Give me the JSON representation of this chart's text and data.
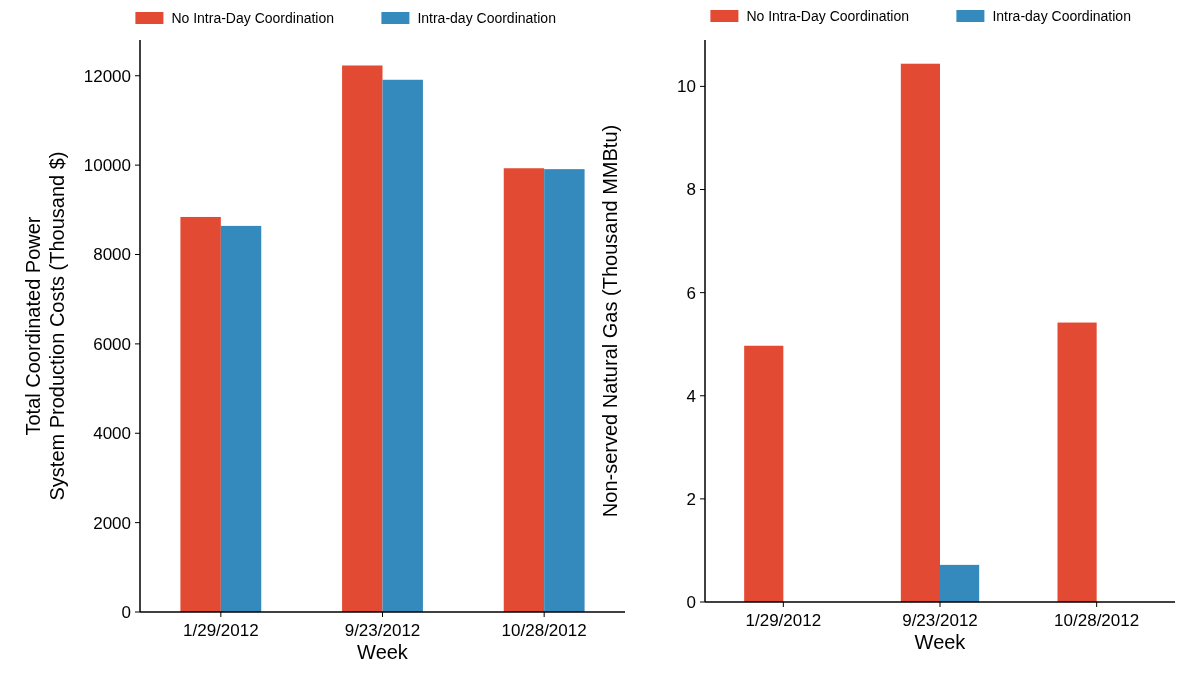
{
  "chart_data": [
    {
      "type": "bar",
      "xlabel": "Week",
      "ylabel": "Total Coordinated Power\nSystem Production Costs (Thousand $)",
      "categories": [
        "1/29/2012",
        "9/23/2012",
        "10/28/2012"
      ],
      "series": [
        {
          "name": "No Intra-Day Coordination",
          "color": "#e24a33",
          "values": [
            8840,
            12230,
            9930
          ]
        },
        {
          "name": "Intra-day Coordination",
          "color": "#348abd",
          "values": [
            8640,
            11910,
            9910
          ]
        }
      ],
      "ylim": [
        0,
        12800
      ],
      "yticks": [
        0,
        2000,
        4000,
        6000,
        8000,
        10000,
        12000
      ],
      "grid": false,
      "legend": "top"
    },
    {
      "type": "bar",
      "xlabel": "Week",
      "ylabel": "Non-served Natural Gas (Thousand MMBtu)",
      "categories": [
        "1/29/2012",
        "9/23/2012",
        "10/28/2012"
      ],
      "series": [
        {
          "name": "No Intra-Day Coordination",
          "color": "#e24a33",
          "values": [
            4.97,
            10.44,
            5.42
          ]
        },
        {
          "name": "Intra-day Coordination",
          "color": "#348abd",
          "values": [
            0,
            0.72,
            0
          ]
        }
      ],
      "ylim": [
        0,
        10.9
      ],
      "yticks": [
        0,
        2,
        4,
        6,
        8,
        10
      ],
      "grid": false,
      "legend": "top"
    }
  ]
}
